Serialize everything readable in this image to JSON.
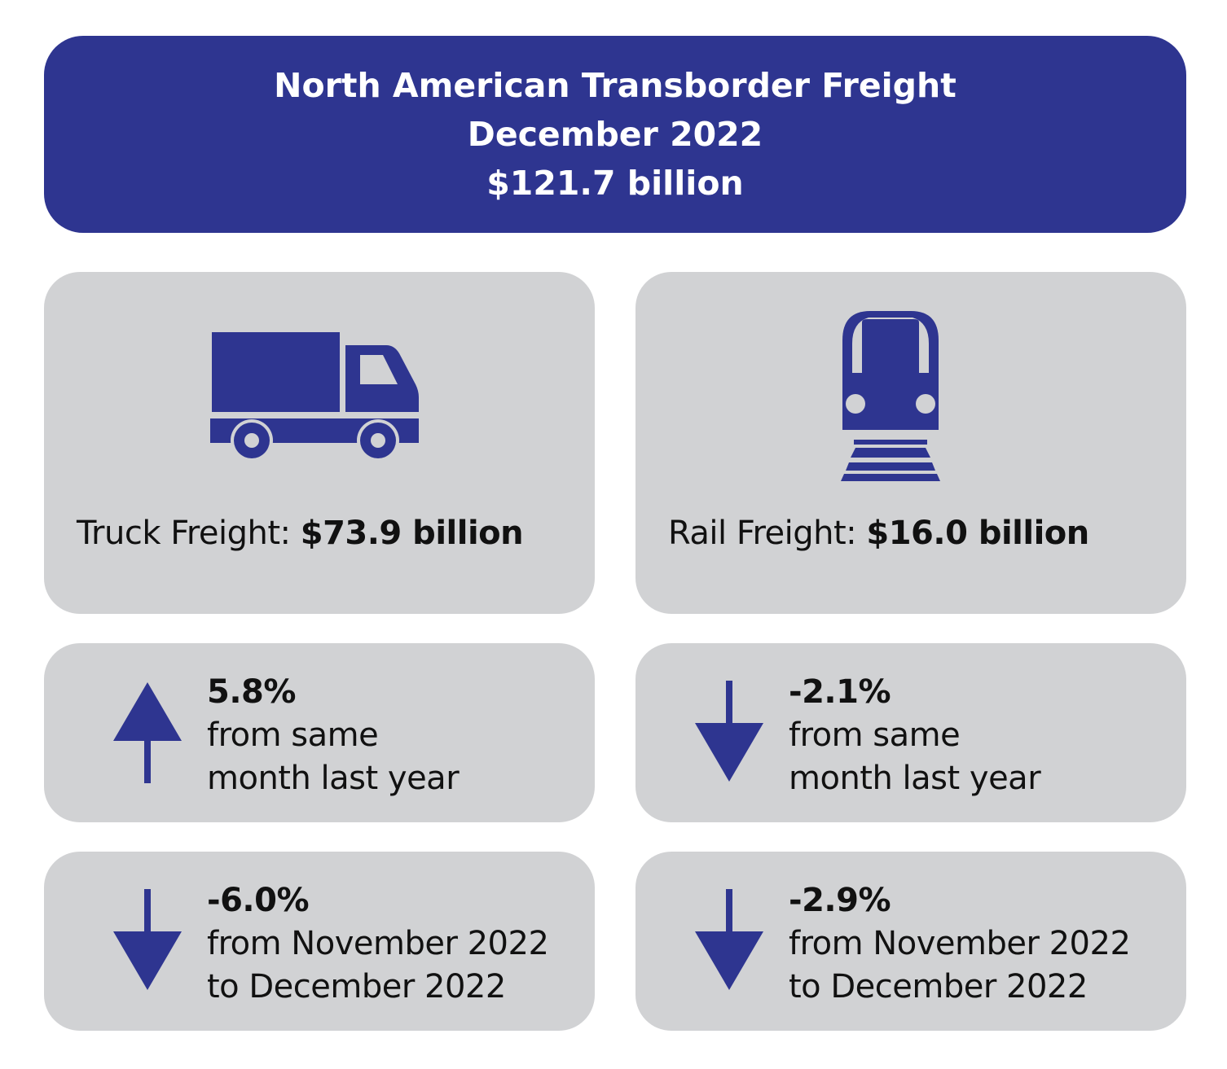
{
  "header": {
    "title": "North American Transborder Freight",
    "period": "December 2022",
    "total": "$121.7 billion",
    "bg_color": "#2e3590"
  },
  "colors": {
    "accent": "#2e3590",
    "card": "#d1d2d4"
  },
  "truck": {
    "icon": "truck-icon",
    "label": "Truck Freight: ",
    "value": "$73.9 billion",
    "yoy": {
      "direction": "up",
      "icon": "arrow-up-icon",
      "value": "5.8%",
      "line1": "from same",
      "line2": "month last year"
    },
    "mom": {
      "direction": "down",
      "icon": "arrow-down-icon",
      "value": "-6.0%",
      "line1": "from November 2022",
      "line2": "to December 2022"
    }
  },
  "rail": {
    "icon": "train-icon",
    "label": "Rail Freight: ",
    "value": "$16.0 billion",
    "yoy": {
      "direction": "down",
      "icon": "arrow-down-icon",
      "value": "-2.1%",
      "line1": "from same",
      "line2": "month last year"
    },
    "mom": {
      "direction": "down",
      "icon": "arrow-down-icon",
      "value": "-2.9%",
      "line1": "from November 2022",
      "line2": "to December 2022"
    }
  }
}
